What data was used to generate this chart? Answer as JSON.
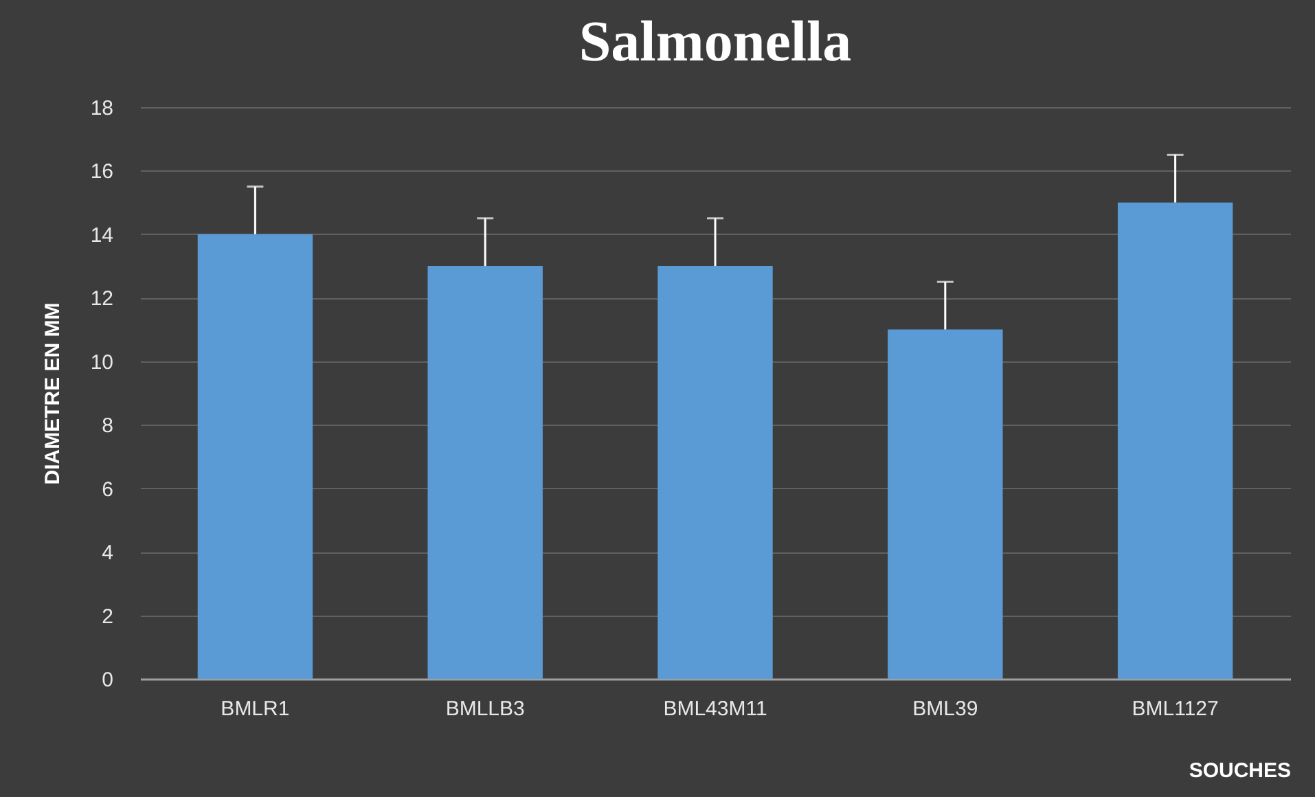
{
  "chart_data": {
    "type": "bar",
    "title": "Salmonella",
    "xlabel": "SOUCHES",
    "ylabel": "DIAMETRE EN MM",
    "categories": [
      "BMLR1",
      "BMLLB3",
      "BML43M11",
      "BML39",
      "BML1127"
    ],
    "values": [
      14,
      13,
      13,
      11,
      15
    ],
    "errors": [
      [
        14,
        15.5
      ],
      [
        13,
        14.5
      ],
      [
        13,
        14.5
      ],
      [
        11,
        12.5
      ],
      [
        15,
        16.5
      ]
    ],
    "color": "#5b9bd5",
    "ylim": [
      0,
      18
    ],
    "yticks": [
      0,
      2,
      4,
      6,
      8,
      10,
      12,
      14,
      16,
      18
    ],
    "grid": "y"
  }
}
